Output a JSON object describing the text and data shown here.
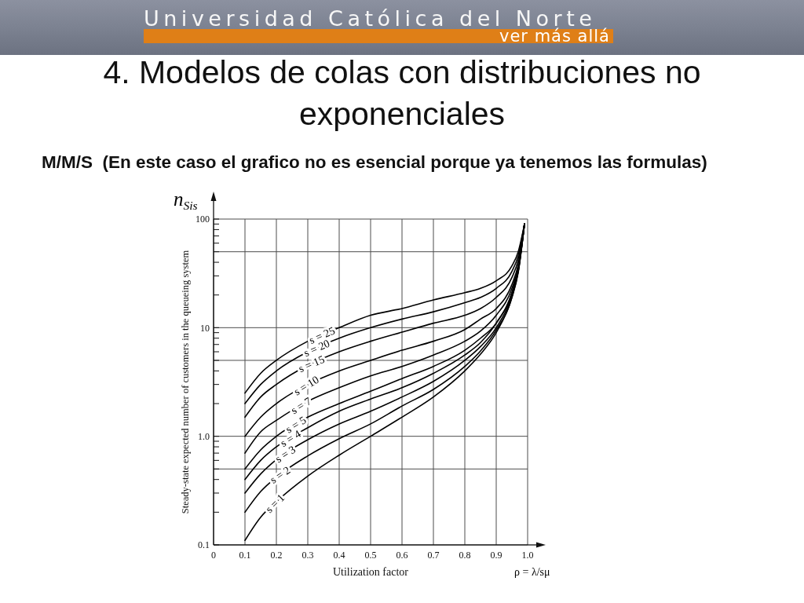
{
  "chart_data": {
    "type": "line",
    "title": "4. Modelos de colas con distribuciones no exponenciales",
    "subtitle": "M/M/S  (En este caso el grafico no es esencial porque ya tenemos las formulas)",
    "xlabel": "Utilization factor",
    "ylabel": "Steady-state expected number of customers in the queueing system",
    "annotations": [
      "Universidad Católica del Norte",
      "ver más allá",
      "n$_{Sis}$",
      "ρ = λ/sμ"
    ],
    "x": [
      0.1,
      0.15,
      0.2,
      0.3,
      0.4,
      0.5,
      0.6,
      0.7,
      0.8,
      0.85,
      0.9,
      0.95,
      0.97,
      0.99
    ],
    "series": [
      {
        "name": "s = 1",
        "color": "#000000",
        "values": [
          0.11,
          0.18,
          0.25,
          0.43,
          0.67,
          1,
          1.5,
          2.3,
          4,
          5.7,
          9,
          19,
          32,
          90
        ]
      },
      {
        "name": "s = 2",
        "color": "#000000",
        "values": [
          0.2,
          0.31,
          0.42,
          0.66,
          0.95,
          1.3,
          1.9,
          2.7,
          4.4,
          6.1,
          9.5,
          19,
          33,
          90
        ]
      },
      {
        "name": "s = 3",
        "color": "#000000",
        "values": [
          0.3,
          0.45,
          0.61,
          0.93,
          1.3,
          1.7,
          2.3,
          3.2,
          5,
          6.7,
          10,
          20,
          33,
          90
        ]
      },
      {
        "name": "s = 4",
        "color": "#000000",
        "values": [
          0.4,
          0.6,
          0.8,
          1.2,
          1.7,
          2.2,
          2.8,
          3.8,
          5.6,
          7.3,
          11,
          21,
          34,
          90
        ]
      },
      {
        "name": "s = 5",
        "color": "#000000",
        "values": [
          0.5,
          0.75,
          1,
          1.5,
          2,
          2.6,
          3.4,
          4.4,
          6.2,
          8,
          11,
          21,
          35,
          90
        ]
      },
      {
        "name": "s = 7",
        "color": "#000000",
        "values": [
          0.7,
          1.1,
          1.4,
          2.1,
          2.8,
          3.6,
          4.4,
          5.6,
          7.5,
          9.3,
          13,
          23,
          36,
          90
        ]
      },
      {
        "name": "s = 10",
        "color": "#000000",
        "values": [
          1,
          1.5,
          2,
          3,
          4,
          5,
          6.2,
          7.5,
          9.6,
          12,
          15,
          25,
          38,
          90
        ]
      },
      {
        "name": "s = 15",
        "color": "#000000",
        "values": [
          1.5,
          2.3,
          3,
          4.5,
          6,
          7.5,
          9.1,
          11,
          13,
          15,
          19,
          29,
          42,
          90
        ]
      },
      {
        "name": "s = 20",
        "color": "#000000",
        "values": [
          2,
          3,
          4,
          6,
          8,
          10,
          12,
          14,
          17,
          19,
          23,
          33,
          46,
          90
        ]
      },
      {
        "name": "s = 25",
        "color": "#000000",
        "values": [
          2.5,
          3.8,
          5,
          7.5,
          10,
          13,
          15,
          18,
          21,
          23,
          27,
          37,
          50,
          90
        ]
      }
    ],
    "xlim": [
      0,
      1
    ],
    "xticks": [
      0,
      0.1,
      0.2,
      0.3,
      0.4,
      0.5,
      0.6,
      0.7,
      0.8,
      0.9,
      {
        "value": 1,
        "label": "1.0"
      }
    ],
    "ylim": [
      0.1,
      100
    ],
    "yticks": [
      0.1,
      {
        "value": 0.2,
        "label": null
      },
      {
        "value": 0.3,
        "label": null
      },
      {
        "value": 0.4,
        "label": null
      },
      {
        "value": 0.5,
        "label": null
      },
      {
        "value": 0.6,
        "label": null
      },
      {
        "value": 0.7,
        "label": null
      },
      {
        "value": 0.8,
        "label": null
      },
      {
        "value": 0.9,
        "label": null
      },
      {
        "value": 1,
        "label": "1.0"
      },
      {
        "value": 2,
        "label": null
      },
      {
        "value": 3,
        "label": null
      },
      {
        "value": 4,
        "label": null
      },
      {
        "value": 5,
        "label": null
      },
      {
        "value": 6,
        "label": null
      },
      {
        "value": 7,
        "label": null
      },
      {
        "value": 8,
        "label": null
      },
      {
        "value": 9,
        "label": null
      },
      10,
      {
        "value": 20,
        "label": null
      },
      {
        "value": 30,
        "label": null
      },
      {
        "value": 40,
        "label": null
      },
      {
        "value": 50,
        "label": null
      },
      {
        "value": 60,
        "label": null
      },
      {
        "value": 70,
        "label": null
      },
      {
        "value": 80,
        "label": null
      },
      {
        "value": 90,
        "label": null
      },
      100
    ],
    "log": "y",
    "grid": "x",
    "line_style": "solid",
    "ref_lines": [
      {
        "axis": "y",
        "value": 0.5,
        "color": "#4d4d4d"
      },
      {
        "axis": "y",
        "value": 1,
        "color": "#4d4d4d"
      },
      {
        "axis": "y",
        "value": 5,
        "color": "#4d4d4d"
      },
      {
        "axis": "y",
        "value": 10,
        "color": "#4d4d4d"
      },
      {
        "axis": "y",
        "value": 50,
        "color": "#4d4d4d"
      }
    ]
  }
}
